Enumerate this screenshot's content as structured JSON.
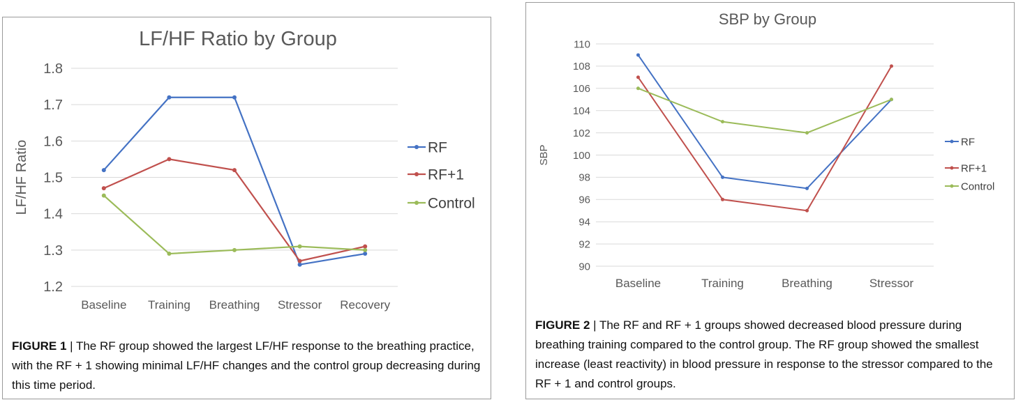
{
  "charts": [
    {
      "chart_data": {
        "type": "line",
        "title": "LF/HF Ratio by Group",
        "xlabel": "",
        "ylabel": "LF/HF Ratio",
        "categories": [
          "Baseline",
          "Training",
          "Breathing",
          "Stressor",
          "Recovery"
        ],
        "ylim": [
          1.2,
          1.8
        ],
        "yticks": [
          "1.2",
          "1.3",
          "1.4",
          "1.5",
          "1.6",
          "1.7",
          "1.8"
        ],
        "grid": true,
        "legend": "right",
        "series": [
          {
            "name": "RF",
            "color": "#4472C4",
            "values": [
              1.52,
              1.72,
              1.72,
              1.26,
              1.29
            ]
          },
          {
            "name": "RF+1",
            "color": "#C0504D",
            "values": [
              1.47,
              1.55,
              1.52,
              1.27,
              1.31
            ]
          },
          {
            "name": "Control",
            "color": "#9BBB59",
            "values": [
              1.45,
              1.29,
              1.3,
              1.31,
              1.3
            ]
          }
        ]
      },
      "caption": {
        "label": "FIGURE 1",
        "text": " | The RF group showed the largest LF/HF response to the breathing practice, with the RF + 1 showing minimal LF/HF changes and the control group decreasing during this time period."
      }
    },
    {
      "chart_data": {
        "type": "line",
        "title": "SBP by Group",
        "xlabel": "",
        "ylabel": "SBP",
        "categories": [
          "Baseline",
          "Training",
          "Breathing",
          "Stressor"
        ],
        "ylim": [
          90,
          110
        ],
        "yticks": [
          "90",
          "92",
          "94",
          "96",
          "98",
          "100",
          "102",
          "104",
          "106",
          "108",
          "110"
        ],
        "grid": true,
        "legend": "right",
        "series": [
          {
            "name": "RF",
            "color": "#4472C4",
            "values": [
              109,
              98,
              97,
              105
            ]
          },
          {
            "name": "RF+1",
            "color": "#C0504D",
            "values": [
              107,
              96,
              95,
              108
            ]
          },
          {
            "name": "Control",
            "color": "#9BBB59",
            "values": [
              106,
              103,
              102,
              105
            ]
          }
        ]
      },
      "caption": {
        "label": "FIGURE 2",
        "text": " | The RF and RF + 1 groups showed decreased blood pressure during breathing training compared to the control group. The RF group showed the smallest increase (least reactivity) in blood pressure in response to the stressor compared to the RF + 1 and control groups."
      }
    }
  ]
}
